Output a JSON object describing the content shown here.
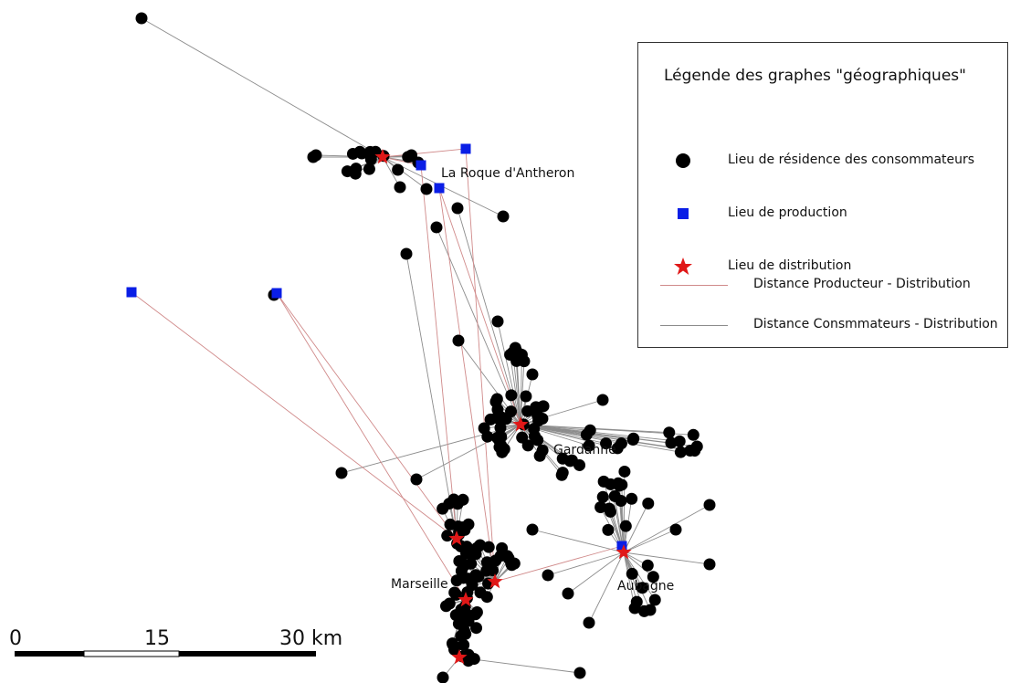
{
  "colors": {
    "consumer": "#000000",
    "production": "#0a1ee6",
    "distribution": "#e01818",
    "producer_link": "#d08a8a",
    "consumer_link": "#8c8c8c"
  },
  "legend": {
    "title": "Légende des graphes \"géographiques\"",
    "consumer_label": "Lieu de résidence des consommateurs",
    "production_label": "Lieu de production",
    "distribution_label": "Lieu de distribution",
    "producer_link_label": "Distance Producteur - Distribution",
    "consumer_link_label": "Distance Consmmateurs - Distribution"
  },
  "places": {
    "roque": "La Roque d'Antheron",
    "gardanne": "Gardanne",
    "marseille": "Marseille",
    "aubagne": "Aubagne"
  },
  "scale_bar": {
    "labels": [
      "0",
      "15",
      "30 km"
    ],
    "unit": "km"
  },
  "icons": {
    "consumer": "black-circle-icon",
    "production": "blue-square-icon",
    "distribution": "red-star-icon"
  }
}
